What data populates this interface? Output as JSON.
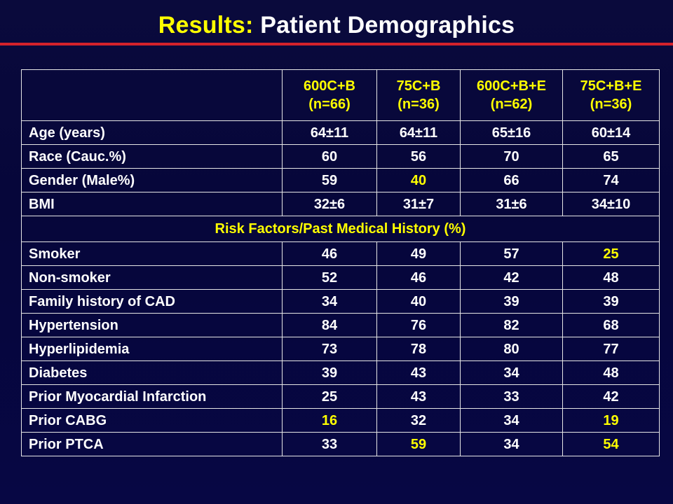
{
  "title": {
    "accent": "Results:",
    "main": "Patient Demographics"
  },
  "colors": {
    "accent": "#ffff00",
    "text": "#ffffff",
    "rule": "#d4222b",
    "background": "#0a0a3c"
  },
  "table": {
    "columns": [
      {
        "line1": "600C+B",
        "line2": "(n=66)"
      },
      {
        "line1": "75C+B",
        "line2": "(n=36)"
      },
      {
        "line1": "600C+B+E",
        "line2": "(n=62)"
      },
      {
        "line1": "75C+B+E",
        "line2": "(n=36)"
      }
    ],
    "demographics": [
      {
        "label": "Age (years)",
        "values": [
          "64±11",
          "64±11",
          "65±16",
          "60±14"
        ],
        "highlight": [
          false,
          false,
          false,
          false
        ]
      },
      {
        "label": "Race (Cauc.%)",
        "values": [
          "60",
          "56",
          "70",
          "65"
        ],
        "highlight": [
          false,
          false,
          false,
          false
        ]
      },
      {
        "label": "Gender (Male%)",
        "values": [
          "59",
          "40",
          "66",
          "74"
        ],
        "highlight": [
          false,
          true,
          false,
          false
        ]
      },
      {
        "label": "BMI",
        "values": [
          "32±6",
          "31±7",
          "31±6",
          "34±10"
        ],
        "highlight": [
          false,
          false,
          false,
          false
        ]
      }
    ],
    "section_title": "Risk Factors/Past Medical History (%)",
    "history": [
      {
        "label": "Smoker",
        "values": [
          "46",
          "49",
          "57",
          "25"
        ],
        "highlight": [
          false,
          false,
          false,
          true
        ]
      },
      {
        "label": "Non-smoker",
        "values": [
          "52",
          "46",
          "42",
          "48"
        ],
        "highlight": [
          false,
          false,
          false,
          false
        ]
      },
      {
        "label": "Family history of CAD",
        "values": [
          "34",
          "40",
          "39",
          "39"
        ],
        "highlight": [
          false,
          false,
          false,
          false
        ]
      },
      {
        "label": "Hypertension",
        "values": [
          "84",
          "76",
          "82",
          "68"
        ],
        "highlight": [
          false,
          false,
          false,
          false
        ]
      },
      {
        "label": "Hyperlipidemia",
        "values": [
          "73",
          "78",
          "80",
          "77"
        ],
        "highlight": [
          false,
          false,
          false,
          false
        ]
      },
      {
        "label": "Diabetes",
        "values": [
          "39",
          "43",
          "34",
          "48"
        ],
        "highlight": [
          false,
          false,
          false,
          false
        ]
      },
      {
        "label": "Prior Myocardial Infarction",
        "values": [
          "25",
          "43",
          "33",
          "42"
        ],
        "highlight": [
          false,
          false,
          false,
          false
        ]
      },
      {
        "label": "Prior CABG",
        "values": [
          "16",
          "32",
          "34",
          "19"
        ],
        "highlight": [
          true,
          false,
          false,
          true
        ]
      },
      {
        "label": "Prior PTCA",
        "values": [
          "33",
          "59",
          "34",
          "54"
        ],
        "highlight": [
          false,
          true,
          false,
          true
        ]
      }
    ]
  }
}
